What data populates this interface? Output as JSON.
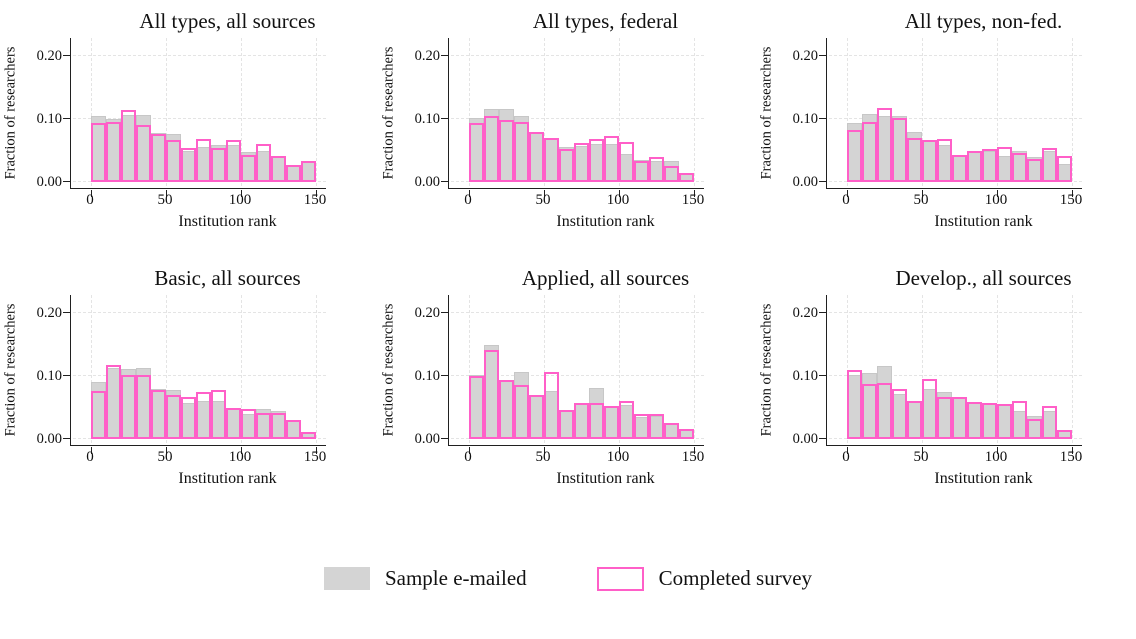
{
  "figure": {
    "kind": "histogram-grid",
    "rows": 2,
    "cols": 3,
    "colors": {
      "sample_fill": "#d4d4d4",
      "survey_outline": "#ff5fc8",
      "background": "#ffffff",
      "axis": "#202020",
      "grid": "#e4e4e4"
    }
  },
  "legend": {
    "items": [
      {
        "label": "Sample e-mailed",
        "swatch": "gray-filled"
      },
      {
        "label": "Completed survey",
        "swatch": "pink-outline"
      }
    ]
  },
  "chart_data": [
    {
      "type": "bar",
      "subtype": "overlaid-histogram",
      "title": "All types, all sources",
      "xlabel": "Institution rank",
      "ylabel": "Fraction of researchers",
      "x_range": [
        0,
        150
      ],
      "bin_width": 10,
      "ylim": [
        0,
        0.225
      ],
      "x_ticks": [
        "0",
        "50",
        "100",
        "150"
      ],
      "y_ticks": [
        "0.00",
        "0.10",
        "0.20"
      ],
      "grid": true,
      "series": [
        {
          "name": "Sample e-mailed",
          "style": "gray-filled",
          "values": [
            0.104,
            0.1,
            0.107,
            0.107,
            0.078,
            0.077,
            0.05,
            0.056,
            0.058,
            0.058,
            0.047,
            0.049,
            0.042,
            0.027,
            0.034
          ]
        },
        {
          "name": "Completed survey",
          "style": "pink-outline",
          "values": [
            0.093,
            0.096,
            0.114,
            0.09,
            0.077,
            0.066,
            0.054,
            0.069,
            0.054,
            0.067,
            0.043,
            0.06,
            0.042,
            0.027,
            0.034
          ]
        }
      ]
    },
    {
      "type": "bar",
      "subtype": "overlaid-histogram",
      "title": "All types, federal",
      "xlabel": "Institution rank",
      "ylabel": "Fraction of researchers",
      "x_range": [
        0,
        150
      ],
      "bin_width": 10,
      "ylim": [
        0,
        0.225
      ],
      "x_ticks": [
        "0",
        "50",
        "100",
        "150"
      ],
      "y_ticks": [
        "0.00",
        "0.10",
        "0.20"
      ],
      "grid": true,
      "series": [
        {
          "name": "Sample e-mailed",
          "style": "gray-filled",
          "values": [
            0.102,
            0.116,
            0.116,
            0.105,
            0.079,
            0.069,
            0.055,
            0.057,
            0.06,
            0.06,
            0.044,
            0.035,
            0.033,
            0.034,
            0.014
          ]
        },
        {
          "name": "Completed survey",
          "style": "pink-outline",
          "values": [
            0.093,
            0.105,
            0.099,
            0.096,
            0.079,
            0.07,
            0.052,
            0.062,
            0.068,
            0.073,
            0.064,
            0.033,
            0.04,
            0.026,
            0.014
          ]
        }
      ]
    },
    {
      "type": "bar",
      "subtype": "overlaid-histogram",
      "title": "All types, non-fed.",
      "xlabel": "Institution rank",
      "ylabel": "Fraction of researchers",
      "x_range": [
        0,
        150
      ],
      "bin_width": 10,
      "ylim": [
        0,
        0.225
      ],
      "x_ticks": [
        "0",
        "50",
        "100",
        "150"
      ],
      "y_ticks": [
        "0.00",
        "0.10",
        "0.20"
      ],
      "grid": true,
      "series": [
        {
          "name": "Sample e-mailed",
          "style": "gray-filled",
          "values": [
            0.094,
            0.108,
            0.105,
            0.105,
            0.08,
            0.065,
            0.058,
            0.043,
            0.05,
            0.05,
            0.041,
            0.05,
            0.04,
            0.049,
            0.028
          ]
        },
        {
          "name": "Completed survey",
          "style": "pink-outline",
          "values": [
            0.083,
            0.095,
            0.117,
            0.101,
            0.07,
            0.066,
            0.068,
            0.043,
            0.049,
            0.052,
            0.055,
            0.046,
            0.037,
            0.054,
            0.042
          ]
        }
      ]
    },
    {
      "type": "bar",
      "subtype": "overlaid-histogram",
      "title": "Basic, all sources",
      "xlabel": "Institution rank",
      "ylabel": "Fraction of researchers",
      "x_range": [
        0,
        150
      ],
      "bin_width": 10,
      "ylim": [
        0,
        0.225
      ],
      "x_ticks": [
        "0",
        "50",
        "100",
        "150"
      ],
      "y_ticks": [
        "0.00",
        "0.10",
        "0.20"
      ],
      "grid": true,
      "series": [
        {
          "name": "Sample e-mailed",
          "style": "gray-filled",
          "values": [
            0.09,
            0.112,
            0.111,
            0.112,
            0.079,
            0.078,
            0.057,
            0.061,
            0.061,
            0.049,
            0.04,
            0.047,
            0.044,
            0.03,
            0.011
          ]
        },
        {
          "name": "Completed survey",
          "style": "pink-outline",
          "values": [
            0.076,
            0.118,
            0.101,
            0.101,
            0.078,
            0.07,
            0.067,
            0.074,
            0.078,
            0.049,
            0.047,
            0.042,
            0.042,
            0.03,
            0.011
          ]
        }
      ]
    },
    {
      "type": "bar",
      "subtype": "overlaid-histogram",
      "title": "Applied, all sources",
      "xlabel": "Institution rank",
      "ylabel": "Fraction of researchers",
      "x_range": [
        0,
        150
      ],
      "bin_width": 10,
      "ylim": [
        0,
        0.225
      ],
      "x_ticks": [
        "0",
        "50",
        "100",
        "150"
      ],
      "y_ticks": [
        "0.00",
        "0.10",
        "0.20"
      ],
      "grid": true,
      "series": [
        {
          "name": "Sample e-mailed",
          "style": "gray-filled",
          "values": [
            0.101,
            0.15,
            0.094,
            0.107,
            0.07,
            0.077,
            0.046,
            0.055,
            0.081,
            0.052,
            0.054,
            0.035,
            0.036,
            0.025,
            0.016
          ]
        },
        {
          "name": "Completed survey",
          "style": "pink-outline",
          "values": [
            0.1,
            0.141,
            0.094,
            0.085,
            0.07,
            0.106,
            0.046,
            0.057,
            0.057,
            0.052,
            0.061,
            0.04,
            0.039,
            0.026,
            0.016
          ]
        }
      ]
    },
    {
      "type": "bar",
      "subtype": "overlaid-histogram",
      "title": "Develop., all sources",
      "xlabel": "Institution rank",
      "ylabel": "Fraction of researchers",
      "x_range": [
        0,
        150
      ],
      "bin_width": 10,
      "ylim": [
        0,
        0.225
      ],
      "x_ticks": [
        "0",
        "50",
        "100",
        "150"
      ],
      "y_ticks": [
        "0.00",
        "0.10",
        "0.20"
      ],
      "grid": true,
      "series": [
        {
          "name": "Sample e-mailed",
          "style": "gray-filled",
          "values": [
            0.101,
            0.104,
            0.116,
            0.071,
            0.06,
            0.08,
            0.075,
            0.066,
            0.057,
            0.057,
            0.056,
            0.045,
            0.037,
            0.044,
            0.014
          ]
        },
        {
          "name": "Completed survey",
          "style": "pink-outline",
          "values": [
            0.109,
            0.087,
            0.089,
            0.079,
            0.06,
            0.095,
            0.066,
            0.066,
            0.059,
            0.057,
            0.056,
            0.06,
            0.031,
            0.053,
            0.014
          ]
        }
      ]
    }
  ]
}
